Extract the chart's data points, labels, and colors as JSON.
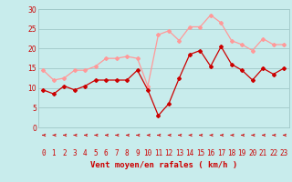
{
  "x": [
    0,
    1,
    2,
    3,
    4,
    5,
    6,
    7,
    8,
    9,
    10,
    11,
    12,
    13,
    14,
    15,
    16,
    17,
    18,
    19,
    20,
    21,
    22,
    23
  ],
  "wind_avg": [
    9.5,
    8.5,
    10.5,
    9.5,
    10.5,
    12.0,
    12.0,
    12.0,
    12.0,
    14.5,
    9.5,
    3.0,
    6.0,
    12.5,
    18.5,
    19.5,
    15.5,
    20.5,
    16.0,
    14.5,
    12.0,
    15.0,
    13.5,
    15.0
  ],
  "wind_gust": [
    14.5,
    12.0,
    12.5,
    14.5,
    14.5,
    15.5,
    17.5,
    17.5,
    18.0,
    17.5,
    10.5,
    23.5,
    24.5,
    22.0,
    25.5,
    25.5,
    28.5,
    26.5,
    22.0,
    21.0,
    19.5,
    22.5,
    21.0,
    21.0
  ],
  "color_avg": "#cc0000",
  "color_gust": "#ff9999",
  "bg_color": "#c8ecec",
  "grid_color": "#a0c8c8",
  "xlabel": "Vent moyen/en rafales ( km/h )",
  "ylim": [
    0,
    30
  ],
  "yticks": [
    0,
    5,
    10,
    15,
    20,
    25,
    30
  ],
  "arrow_color": "#cc0000",
  "axis_color": "#cc0000",
  "tick_color": "#cc0000",
  "tick_fontsize": 5.5,
  "ylabel_fontsize": 6.5
}
